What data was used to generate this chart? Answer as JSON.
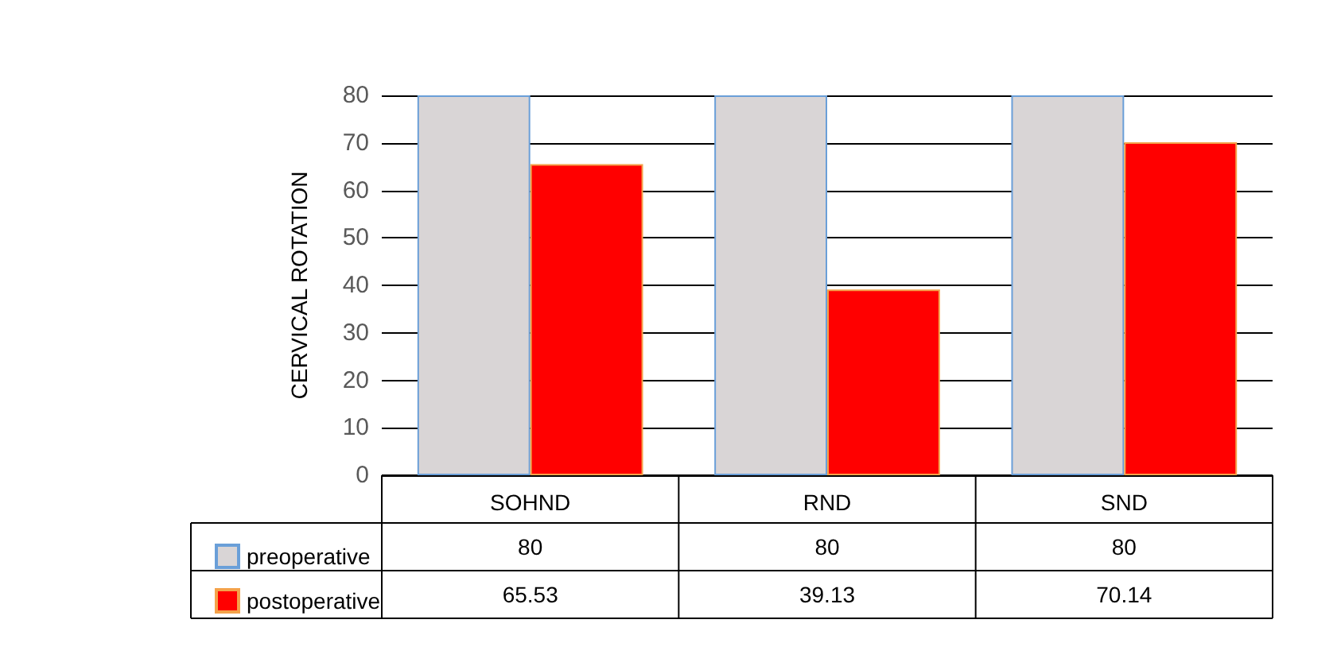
{
  "chart_data": {
    "type": "bar",
    "ylabel": "CERVICAL ROTATION",
    "categories": [
      "SOHND",
      "RND",
      "SND"
    ],
    "series": [
      {
        "name": "preoperative",
        "color": "#d9d5d6",
        "values": [
          80,
          80,
          80
        ]
      },
      {
        "name": "postoperative",
        "color": "#ff0000",
        "values": [
          65.53,
          39.13,
          70.14
        ]
      }
    ],
    "ylim": [
      0,
      80
    ],
    "yticks": [
      0,
      10,
      20,
      30,
      40,
      50,
      60,
      70,
      80
    ],
    "grid": "y",
    "legend": "bottom left",
    "data_labels": true
  }
}
